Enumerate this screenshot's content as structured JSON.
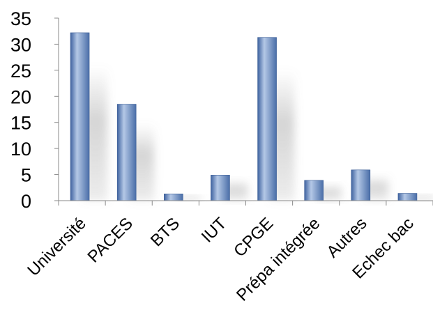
{
  "chart_data": {
    "type": "bar",
    "title": "",
    "xlabel": "",
    "ylabel": "",
    "categories": [
      "Université",
      "PACES",
      "BTS",
      "IUT",
      "CPGE",
      "Prépa intégrée",
      "Autres",
      "Echec bac"
    ],
    "values": [
      32.2,
      18.5,
      1.3,
      4.9,
      31.3,
      3.9,
      5.9,
      1.4
    ],
    "ylim": [
      0,
      35
    ],
    "yticks": [
      "0",
      "5",
      "10",
      "15",
      "20",
      "25",
      "30",
      "35"
    ],
    "grid": false,
    "legend": "none",
    "bar_color": "#5b7fb5",
    "bar_highlight": "#b4c8e6"
  }
}
